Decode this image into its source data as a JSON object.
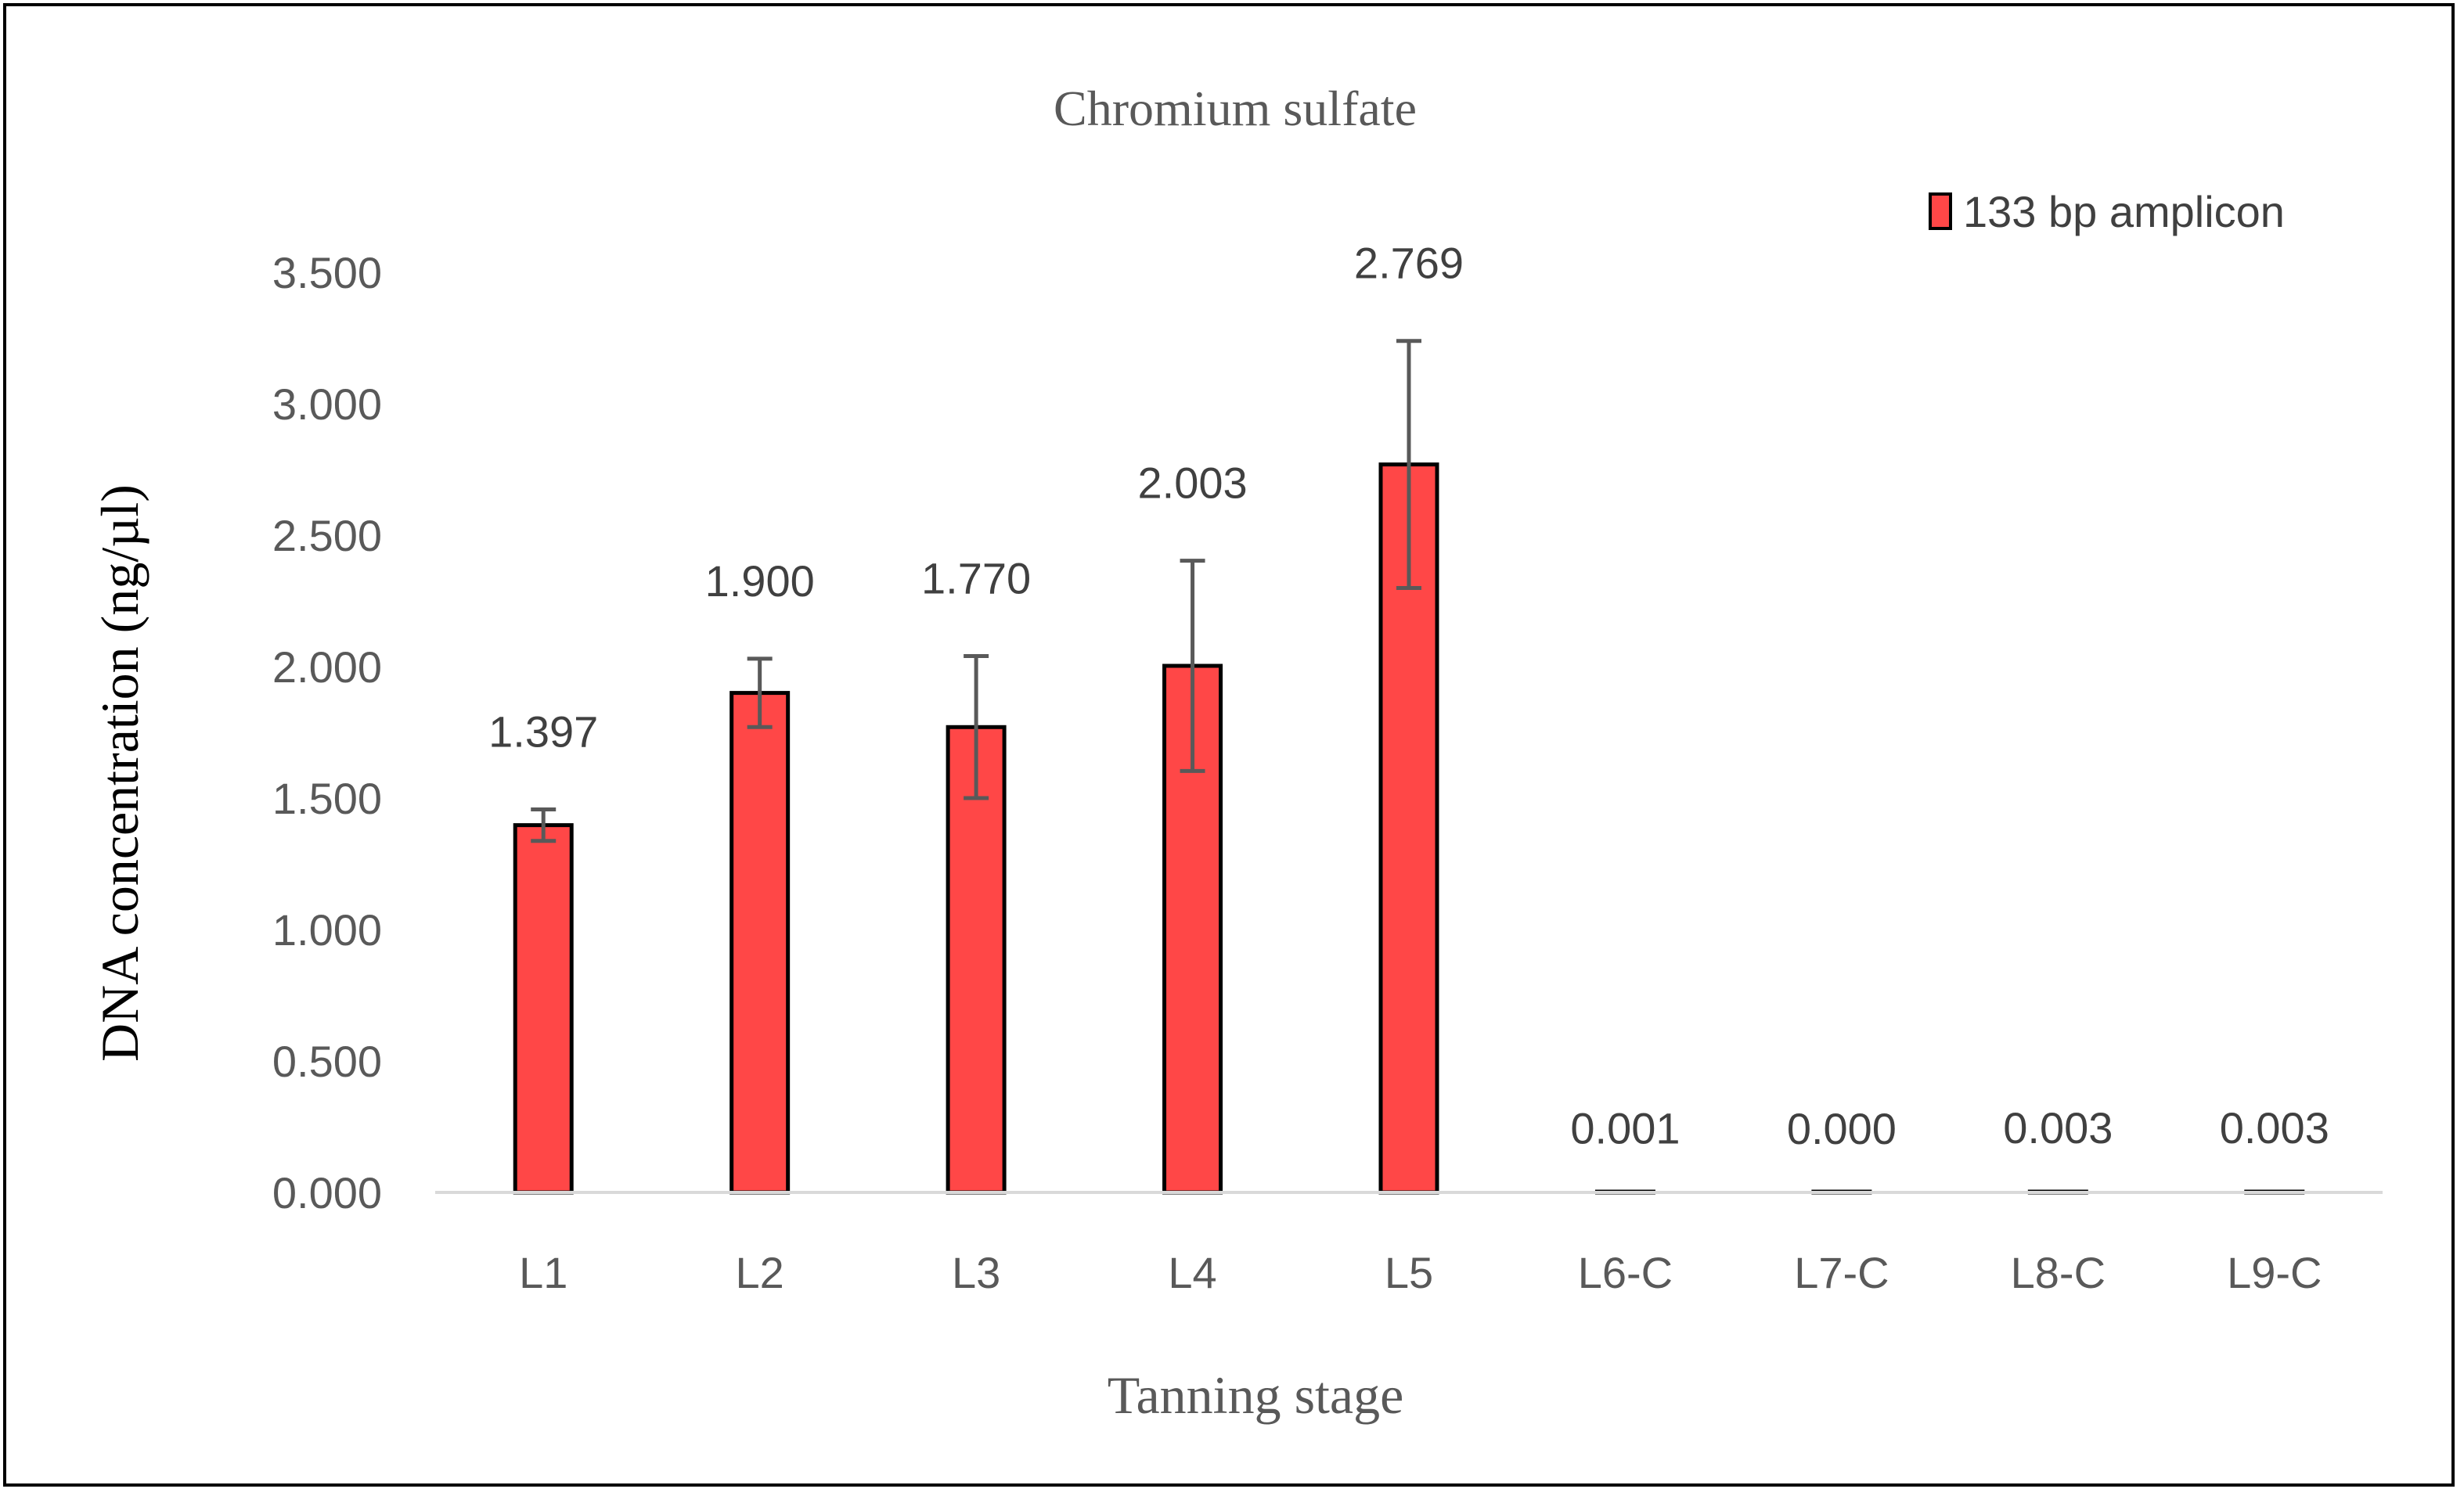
{
  "chart_data": {
    "type": "bar",
    "title": "Chromium sulfate",
    "xlabel": "Tanning stage",
    "ylabel": "DNA concentration (ng/µl)",
    "categories": [
      "L1",
      "L2",
      "L3",
      "L4",
      "L5",
      "L6-C",
      "L7-C",
      "L8-C",
      "L9-C"
    ],
    "series": [
      {
        "name": "133 bp amplicon",
        "values": [
          1.397,
          1.9,
          1.77,
          2.003,
          2.769,
          0.001,
          0.0,
          0.003,
          0.003
        ],
        "data_labels": [
          "1.397",
          "1.900",
          "1.770",
          "2.003",
          "2.769",
          "0.001",
          "0.000",
          "0.003",
          "0.003"
        ],
        "error_bars": [
          0.06,
          0.13,
          0.27,
          0.4,
          0.47,
          0,
          0,
          0,
          0
        ],
        "color": "#ff4747"
      }
    ],
    "ylim": [
      0,
      3.5
    ],
    "yticks": [
      0,
      0.5,
      1.0,
      1.5,
      2.0,
      2.5,
      3.0,
      3.5
    ],
    "ytick_labels": [
      "0.000",
      "0.500",
      "1.000",
      "1.500",
      "2.000",
      "2.500",
      "3.000",
      "3.500"
    ],
    "grid": false,
    "legend_position": "top-right",
    "colors": {
      "bar_fill": "#ff4747",
      "bar_stroke": "#000000",
      "error_bar": "#595959",
      "axis": "#d9d9d9"
    }
  }
}
